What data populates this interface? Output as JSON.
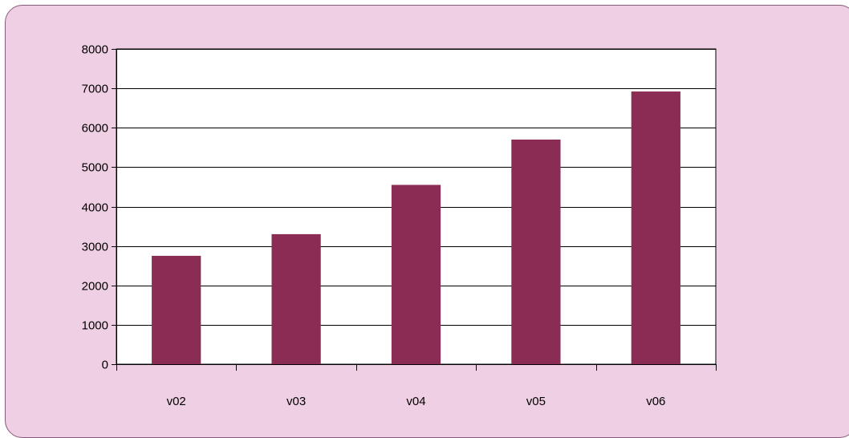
{
  "chart_data": {
    "type": "bar",
    "categories": [
      "v02",
      "v03",
      "v04",
      "v05",
      "v06"
    ],
    "series": [
      {
        "values": [
          2750,
          3300,
          4550,
          5700,
          6920
        ]
      }
    ],
    "title": "",
    "xlabel": "",
    "ylabel": "",
    "ylim": [
      0,
      8000
    ],
    "yticks": [
      "0",
      "1000",
      "2000",
      "3000",
      "4000",
      "5000",
      "6000",
      "7000",
      "8000"
    ],
    "grid": true,
    "legend": "none"
  },
  "colors": {
    "background": "#efcfe3",
    "plot_area": "#ffffff",
    "bar": "#8b2c55",
    "grid": "#000000"
  }
}
